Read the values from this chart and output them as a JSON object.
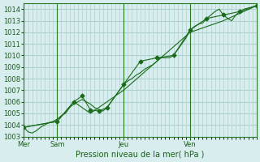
{
  "title": "",
  "xlabel": "Pression niveau de la mer( hPa )",
  "ylabel": "",
  "bg_color": "#d8eeee",
  "grid_color": "#b0d0d0",
  "line_color": "#1a6b1a",
  "marker_color": "#1a6b1a",
  "ylim": [
    1003,
    1014.5
  ],
  "yticks": [
    1003,
    1004,
    1005,
    1006,
    1007,
    1008,
    1009,
    1010,
    1011,
    1012,
    1013,
    1014
  ],
  "day_positions": [
    0,
    24,
    72,
    120,
    144
  ],
  "day_labels": [
    "Mer",
    "Sam",
    "Jeu",
    "Ven",
    ""
  ],
  "xlim": [
    0,
    168
  ],
  "series1_x": [
    0,
    3,
    6,
    9,
    12,
    15,
    18,
    21,
    24,
    27,
    30,
    33,
    36,
    39,
    42,
    45,
    48,
    51,
    54,
    57,
    60,
    63,
    66,
    69,
    72,
    75,
    78,
    81,
    84,
    87,
    90,
    93,
    96,
    99,
    102,
    105,
    108,
    111,
    114,
    117,
    120,
    123,
    126,
    129,
    132,
    135,
    138,
    141,
    144,
    147,
    150,
    153,
    156,
    159,
    162,
    165,
    168
  ],
  "series1_y": [
    1003.8,
    1003.4,
    1003.3,
    1003.5,
    1003.8,
    1004.0,
    1004.2,
    1004.3,
    1004.5,
    1004.8,
    1005.0,
    1005.5,
    1005.8,
    1006.0,
    1006.2,
    1006.0,
    1005.8,
    1005.5,
    1005.3,
    1005.2,
    1005.5,
    1006.0,
    1006.5,
    1007.0,
    1007.5,
    1007.8,
    1008.0,
    1008.3,
    1008.5,
    1008.8,
    1009.0,
    1009.2,
    1009.5,
    1009.8,
    1009.8,
    1009.8,
    1010.0,
    1010.5,
    1011.0,
    1011.5,
    1012.2,
    1012.5,
    1012.7,
    1012.8,
    1013.2,
    1013.5,
    1013.8,
    1014.0,
    1013.5,
    1013.2,
    1013.0,
    1013.5,
    1013.8,
    1014.0,
    1014.1,
    1014.2,
    1014.3
  ],
  "series2_x": [
    0,
    24,
    36,
    42,
    48,
    54,
    60,
    72,
    84,
    96,
    108,
    120,
    132,
    144,
    156,
    168
  ],
  "series2_y": [
    1003.8,
    1004.3,
    1006.0,
    1006.5,
    1005.3,
    1005.2,
    1005.5,
    1007.5,
    1009.5,
    1009.8,
    1010.0,
    1012.2,
    1013.2,
    1013.5,
    1013.8,
    1014.3
  ],
  "series3_x": [
    0,
    24,
    36,
    48,
    72,
    96,
    120,
    144,
    168
  ],
  "series3_y": [
    1003.8,
    1004.3,
    1006.0,
    1005.0,
    1007.0,
    1009.5,
    1012.0,
    1013.0,
    1014.3
  ]
}
